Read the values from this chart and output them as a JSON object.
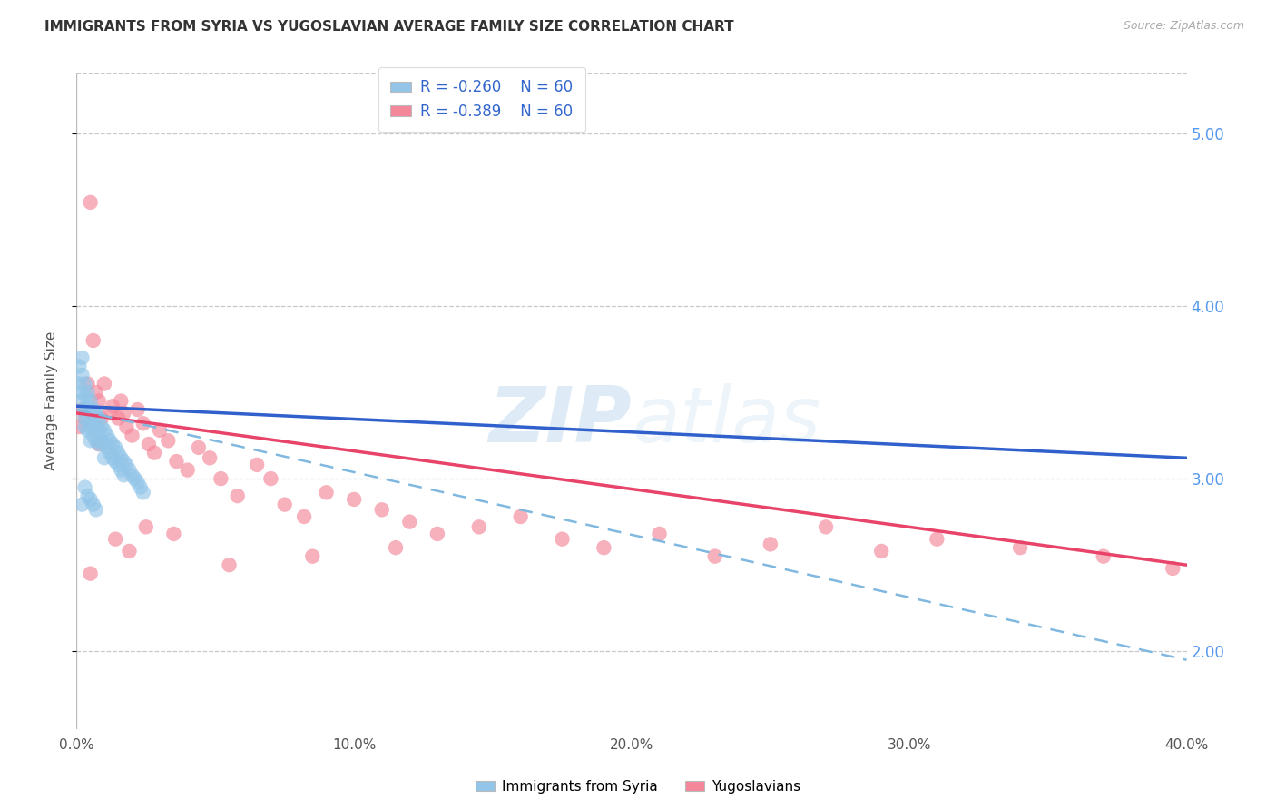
{
  "title": "IMMIGRANTS FROM SYRIA VS YUGOSLAVIAN AVERAGE FAMILY SIZE CORRELATION CHART",
  "source": "Source: ZipAtlas.com",
  "ylabel": "Average Family Size",
  "yticks": [
    2.0,
    3.0,
    4.0,
    5.0
  ],
  "xticks": [
    0.0,
    0.1,
    0.2,
    0.3,
    0.4
  ],
  "xlim": [
    0.0,
    0.4
  ],
  "ylim": [
    1.55,
    5.35
  ],
  "legend_r_syria": "R = -0.260",
  "legend_n_syria": "N = 60",
  "legend_r_yugo": "R = -0.389",
  "legend_n_yugo": "N = 60",
  "legend_label_syria": "Immigrants from Syria",
  "legend_label_yugo": "Yugoslavians",
  "color_syria": "#92C5E8",
  "color_yugo": "#F4879A",
  "color_trendline_syria_solid": "#3060CC",
  "color_trendline_syria_dash": "#80B8E0",
  "color_trendline_yugo": "#E8446A",
  "watermark_zip": "ZIP",
  "watermark_atlas": "atlas",
  "background_color": "#ffffff",
  "grid_color": "#c8c8c8",
  "syria_x": [
    0.001,
    0.001,
    0.002,
    0.002,
    0.002,
    0.002,
    0.003,
    0.003,
    0.003,
    0.003,
    0.003,
    0.004,
    0.004,
    0.004,
    0.004,
    0.005,
    0.005,
    0.005,
    0.005,
    0.006,
    0.006,
    0.006,
    0.007,
    0.007,
    0.007,
    0.008,
    0.008,
    0.008,
    0.009,
    0.009,
    0.01,
    0.01,
    0.01,
    0.011,
    0.011,
    0.012,
    0.012,
    0.013,
    0.013,
    0.014,
    0.014,
    0.015,
    0.015,
    0.016,
    0.016,
    0.017,
    0.017,
    0.018,
    0.019,
    0.02,
    0.021,
    0.022,
    0.023,
    0.024,
    0.002,
    0.003,
    0.004,
    0.005,
    0.006,
    0.007
  ],
  "syria_y": [
    3.55,
    3.65,
    3.6,
    3.7,
    3.5,
    3.45,
    3.55,
    3.48,
    3.4,
    3.35,
    3.3,
    3.5,
    3.42,
    3.35,
    3.28,
    3.45,
    3.38,
    3.3,
    3.22,
    3.4,
    3.32,
    3.25,
    3.38,
    3.3,
    3.22,
    3.35,
    3.28,
    3.2,
    3.3,
    3.22,
    3.28,
    3.2,
    3.12,
    3.25,
    3.18,
    3.22,
    3.15,
    3.2,
    3.12,
    3.18,
    3.1,
    3.15,
    3.08,
    3.12,
    3.05,
    3.1,
    3.02,
    3.08,
    3.05,
    3.02,
    3.0,
    2.98,
    2.95,
    2.92,
    2.85,
    2.95,
    2.9,
    2.88,
    2.85,
    2.82
  ],
  "yugo_x": [
    0.001,
    0.002,
    0.003,
    0.004,
    0.005,
    0.006,
    0.007,
    0.008,
    0.009,
    0.01,
    0.012,
    0.013,
    0.015,
    0.016,
    0.017,
    0.018,
    0.02,
    0.022,
    0.024,
    0.026,
    0.028,
    0.03,
    0.033,
    0.036,
    0.04,
    0.044,
    0.048,
    0.052,
    0.058,
    0.065,
    0.07,
    0.075,
    0.082,
    0.09,
    0.1,
    0.11,
    0.12,
    0.13,
    0.145,
    0.16,
    0.175,
    0.19,
    0.21,
    0.23,
    0.25,
    0.27,
    0.29,
    0.31,
    0.34,
    0.37,
    0.395,
    0.014,
    0.019,
    0.025,
    0.035,
    0.055,
    0.085,
    0.115,
    0.005,
    0.008
  ],
  "yugo_y": [
    3.3,
    3.4,
    3.35,
    3.55,
    4.6,
    3.8,
    3.5,
    3.45,
    3.35,
    3.55,
    3.38,
    3.42,
    3.35,
    3.45,
    3.38,
    3.3,
    3.25,
    3.4,
    3.32,
    3.2,
    3.15,
    3.28,
    3.22,
    3.1,
    3.05,
    3.18,
    3.12,
    3.0,
    2.9,
    3.08,
    3.0,
    2.85,
    2.78,
    2.92,
    2.88,
    2.82,
    2.75,
    2.68,
    2.72,
    2.78,
    2.65,
    2.6,
    2.68,
    2.55,
    2.62,
    2.72,
    2.58,
    2.65,
    2.6,
    2.55,
    2.48,
    2.65,
    2.58,
    2.72,
    2.68,
    2.5,
    2.55,
    2.6,
    2.45,
    3.2
  ],
  "syria_trend_x0": 0.0,
  "syria_trend_x1": 0.4,
  "syria_trend_y0": 3.42,
  "syria_trend_y1": 3.12,
  "yugo_trend_x0": 0.0,
  "yugo_trend_x1": 0.4,
  "yugo_trend_y0": 3.38,
  "yugo_trend_y1": 2.5,
  "dash_trend_x0": 0.0,
  "dash_trend_x1": 0.4,
  "dash_trend_y0": 3.4,
  "dash_trend_y1": 1.95
}
